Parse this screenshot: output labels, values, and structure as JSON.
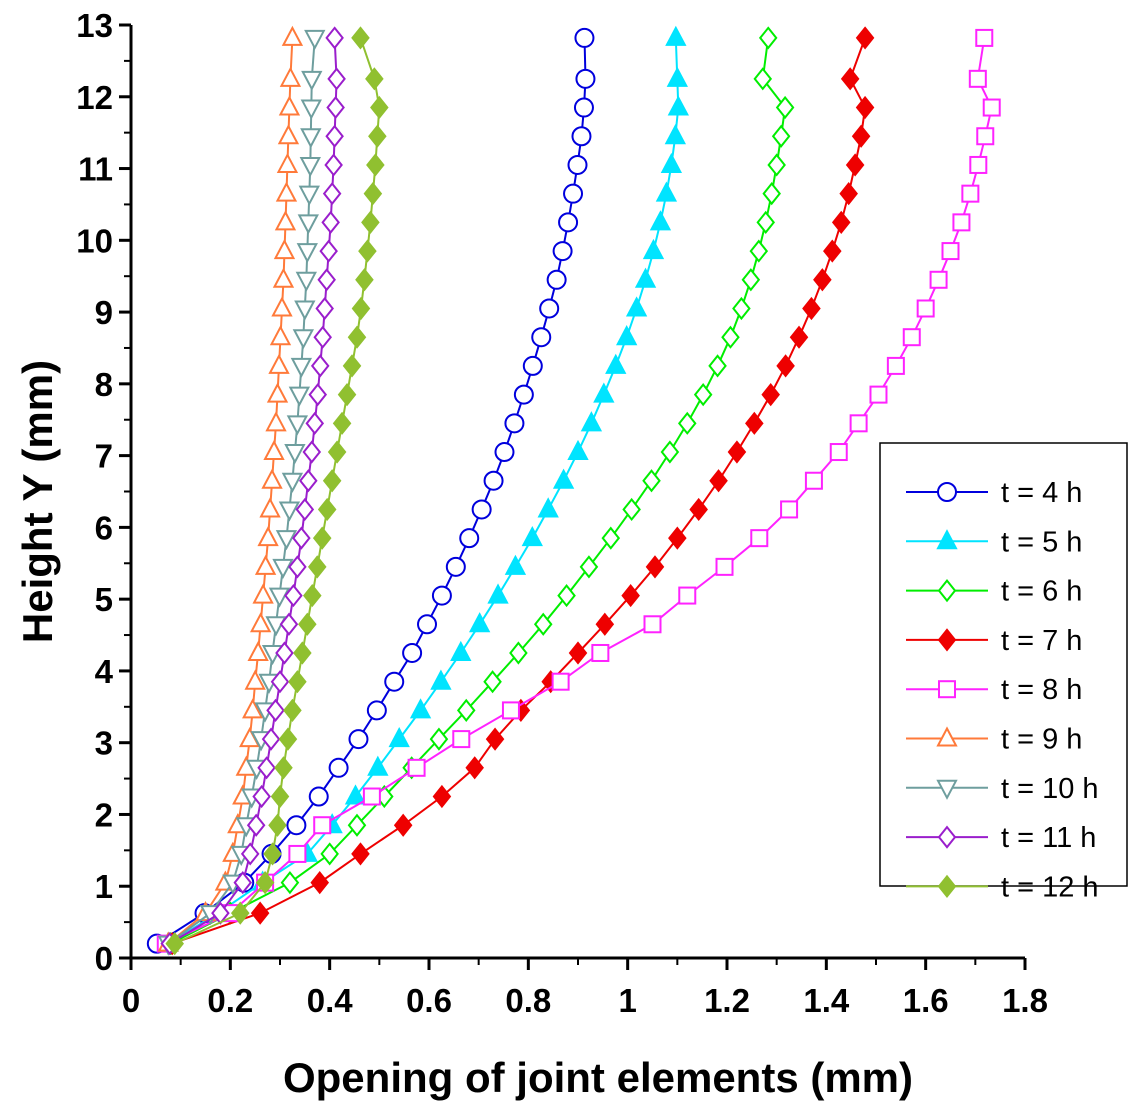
{
  "chart_data": {
    "type": "line",
    "xlabel": "Opening of joint elements (mm)",
    "ylabel": "Height Y (mm)",
    "xlim": [
      0,
      1.8
    ],
    "ylim": [
      0,
      13
    ],
    "x_ticks": [
      "0",
      "0.2",
      "0.4",
      "0.6",
      "0.8",
      "1",
      "1.2",
      "1.4",
      "1.6",
      "1.8"
    ],
    "y_ticks": [
      "0",
      "1",
      "2",
      "3",
      "4",
      "5",
      "6",
      "7",
      "8",
      "9",
      "10",
      "11",
      "12",
      "13"
    ],
    "legend_position": "bottom-right",
    "y_points": [
      0.2,
      0.625,
      1.05,
      1.45,
      1.85,
      2.25,
      2.65,
      3.05,
      3.45,
      3.85,
      4.25,
      4.65,
      5.05,
      5.45,
      5.85,
      6.25,
      6.65,
      7.05,
      7.45,
      7.85,
      8.25,
      8.65,
      9.05,
      9.45,
      9.85,
      10.25,
      10.65,
      11.05,
      11.45,
      11.85,
      12.25,
      12.82
    ],
    "series": [
      {
        "name": "t = 4 h",
        "color": "#0000dd",
        "marker": "circle",
        "filled": false,
        "x": [
          0.052,
          0.148,
          0.228,
          0.283,
          0.333,
          0.378,
          0.418,
          0.458,
          0.495,
          0.53,
          0.566,
          0.596,
          0.626,
          0.654,
          0.681,
          0.706,
          0.73,
          0.752,
          0.772,
          0.791,
          0.809,
          0.826,
          0.842,
          0.857,
          0.869,
          0.88,
          0.89,
          0.899,
          0.907,
          0.912,
          0.915,
          0.913
        ]
      },
      {
        "name": "t = 5 h",
        "color": "#00e4ff",
        "marker": "triangle-up",
        "filled": true,
        "x": [
          0.075,
          0.175,
          0.265,
          0.355,
          0.405,
          0.452,
          0.497,
          0.54,
          0.583,
          0.624,
          0.664,
          0.702,
          0.739,
          0.774,
          0.808,
          0.84,
          0.871,
          0.9,
          0.927,
          0.952,
          0.976,
          0.998,
          1.018,
          1.036,
          1.052,
          1.066,
          1.078,
          1.088,
          1.096,
          1.102,
          1.1,
          1.097
        ]
      },
      {
        "name": "t = 6 h",
        "color": "#00ee00",
        "marker": "diamond",
        "filled": false,
        "x": [
          0.08,
          0.2,
          0.32,
          0.4,
          0.455,
          0.51,
          0.565,
          0.62,
          0.675,
          0.728,
          0.78,
          0.83,
          0.877,
          0.922,
          0.966,
          1.008,
          1.048,
          1.085,
          1.12,
          1.152,
          1.181,
          1.207,
          1.229,
          1.248,
          1.264,
          1.278,
          1.29,
          1.3,
          1.309,
          1.317,
          1.272,
          1.283
        ]
      },
      {
        "name": "t = 7 h",
        "color": "#ee0000",
        "marker": "diamond",
        "filled": true,
        "x": [
          0.083,
          0.26,
          0.38,
          0.462,
          0.548,
          0.626,
          0.692,
          0.733,
          0.785,
          0.845,
          0.9,
          0.954,
          1.006,
          1.055,
          1.1,
          1.143,
          1.183,
          1.22,
          1.255,
          1.288,
          1.318,
          1.345,
          1.37,
          1.392,
          1.412,
          1.43,
          1.445,
          1.458,
          1.47,
          1.478,
          1.448,
          1.478
        ]
      },
      {
        "name": "t = 8 h",
        "color": "#ff22ff",
        "marker": "square",
        "filled": false,
        "x": [
          0.07,
          0.2,
          0.27,
          0.335,
          0.385,
          0.485,
          0.575,
          0.665,
          0.765,
          0.865,
          0.945,
          1.05,
          1.12,
          1.195,
          1.265,
          1.325,
          1.375,
          1.425,
          1.465,
          1.505,
          1.54,
          1.572,
          1.6,
          1.626,
          1.65,
          1.672,
          1.69,
          1.706,
          1.72,
          1.733,
          1.705,
          1.718
        ]
      },
      {
        "name": "t = 9 h",
        "color": "#ff7a3a",
        "marker": "triangle-up",
        "filled": false,
        "x": [
          0.075,
          0.15,
          0.19,
          0.205,
          0.215,
          0.225,
          0.232,
          0.239,
          0.245,
          0.25,
          0.256,
          0.261,
          0.266,
          0.271,
          0.276,
          0.28,
          0.284,
          0.288,
          0.292,
          0.295,
          0.298,
          0.301,
          0.304,
          0.307,
          0.309,
          0.311,
          0.313,
          0.315,
          0.317,
          0.319,
          0.321,
          0.325
        ]
      },
      {
        "name": "t = 10 h",
        "color": "#6e9e9e",
        "marker": "triangle-down",
        "filled": false,
        "x": [
          0.075,
          0.16,
          0.205,
          0.222,
          0.232,
          0.243,
          0.253,
          0.262,
          0.27,
          0.278,
          0.285,
          0.292,
          0.299,
          0.306,
          0.313,
          0.319,
          0.325,
          0.33,
          0.335,
          0.339,
          0.343,
          0.347,
          0.35,
          0.353,
          0.355,
          0.357,
          0.359,
          0.361,
          0.362,
          0.363,
          0.364,
          0.37
        ]
      },
      {
        "name": "t = 11 h",
        "color": "#9a1ecc",
        "marker": "diamond",
        "filled": false,
        "x": [
          0.078,
          0.18,
          0.225,
          0.24,
          0.252,
          0.263,
          0.273,
          0.282,
          0.291,
          0.3,
          0.309,
          0.318,
          0.327,
          0.335,
          0.343,
          0.35,
          0.357,
          0.364,
          0.37,
          0.376,
          0.381,
          0.386,
          0.39,
          0.394,
          0.398,
          0.402,
          0.405,
          0.408,
          0.41,
          0.412,
          0.414,
          0.41
        ]
      },
      {
        "name": "t = 12 h",
        "color": "#90c030",
        "marker": "diamond",
        "filled": true,
        "x": [
          0.088,
          0.22,
          0.27,
          0.285,
          0.295,
          0.3,
          0.307,
          0.316,
          0.325,
          0.335,
          0.345,
          0.355,
          0.365,
          0.375,
          0.385,
          0.395,
          0.405,
          0.415,
          0.425,
          0.435,
          0.445,
          0.455,
          0.463,
          0.47,
          0.476,
          0.482,
          0.487,
          0.492,
          0.496,
          0.5,
          0.49,
          0.462
        ]
      }
    ]
  }
}
